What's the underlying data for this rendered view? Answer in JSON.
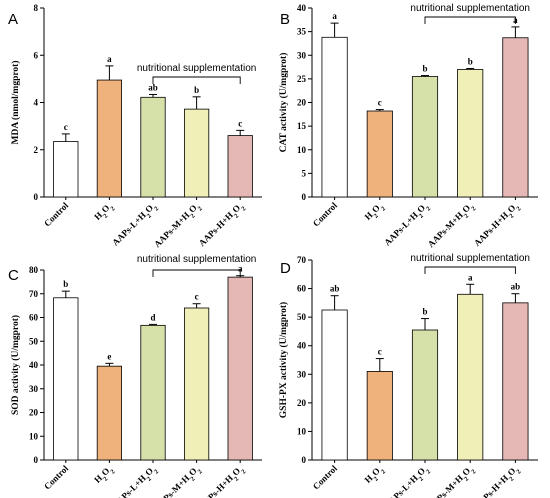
{
  "chart_data": [
    {
      "panel": "A",
      "type": "bar",
      "ylabel": "MDA (nmol/mgprot)",
      "ylim": [
        0,
        8
      ],
      "yticks": [
        0,
        2,
        4,
        6,
        8
      ],
      "categories": [
        "Control",
        "H2O2",
        "AAPs-L+H2O2",
        "AAPs-M+H2O2",
        "AAPs-H+H2O2"
      ],
      "values": [
        2.35,
        4.95,
        4.22,
        3.72,
        2.6
      ],
      "errors": [
        0.32,
        0.6,
        0.12,
        0.52,
        0.22
      ],
      "letters": [
        "c",
        "a",
        "ab",
        "b",
        "c"
      ],
      "annotation": "nutritional supplementation",
      "bracket_span": [
        2,
        4
      ]
    },
    {
      "panel": "B",
      "type": "bar",
      "ylabel": "CAT activity (U/mgprot)",
      "ylim": [
        0,
        40
      ],
      "yticks": [
        0,
        5,
        10,
        15,
        20,
        25,
        30,
        35,
        40
      ],
      "categories": [
        "Control",
        "H2O2",
        "AAPs-L+H2O2",
        "AAPs-M+H2O2",
        "AAPs-H+H2O2"
      ],
      "values": [
        33.8,
        18.2,
        25.5,
        27.0,
        33.7
      ],
      "errors": [
        3.0,
        0.3,
        0.2,
        0.2,
        2.3
      ],
      "letters": [
        "a",
        "c",
        "b",
        "b",
        "a"
      ],
      "annotation": "nutritional supplementation",
      "bracket_span": [
        2,
        4
      ]
    },
    {
      "panel": "C",
      "type": "bar",
      "ylabel": "SOD activity (U/mgprot)",
      "ylim": [
        0,
        80
      ],
      "yticks": [
        0,
        10,
        20,
        30,
        40,
        50,
        60,
        70,
        80
      ],
      "categories": [
        "Control",
        "H2O2",
        "AAPs-L+H2O2",
        "AAPs-M+H2O2",
        "AAPs-H+H2O2"
      ],
      "values": [
        68.3,
        39.5,
        56.7,
        64.0,
        77.0
      ],
      "errors": [
        2.8,
        1.2,
        0.4,
        1.8,
        0.6
      ],
      "letters": [
        "b",
        "e",
        "d",
        "c",
        "a"
      ],
      "annotation": "nutritional supplementation",
      "bracket_span": [
        2,
        4
      ]
    },
    {
      "panel": "D",
      "type": "bar",
      "ylabel": "GSH-PX activity (U/mgprot)",
      "ylim": [
        0,
        70
      ],
      "yticks": [
        0,
        10,
        20,
        30,
        40,
        50,
        60,
        70
      ],
      "categories": [
        "Control",
        "H2O2",
        "AAPs-L+H2O2",
        "AAPs-M+H2O2",
        "AAPs-H+H2O2"
      ],
      "values": [
        52.5,
        31.0,
        45.5,
        58.0,
        55.0
      ],
      "errors": [
        5.0,
        4.5,
        4.0,
        3.5,
        3.2
      ],
      "letters": [
        "ab",
        "c",
        "b",
        "a",
        "ab"
      ],
      "annotation": "nutritional supplementation",
      "bracket_span": [
        2,
        4
      ]
    }
  ],
  "style": {
    "bar_fills": [
      "#ffffff",
      "#f0b27c",
      "#d5e1a8",
      "#f0efb8",
      "#e5b8b6"
    ],
    "bar_stroke": "#000000"
  }
}
